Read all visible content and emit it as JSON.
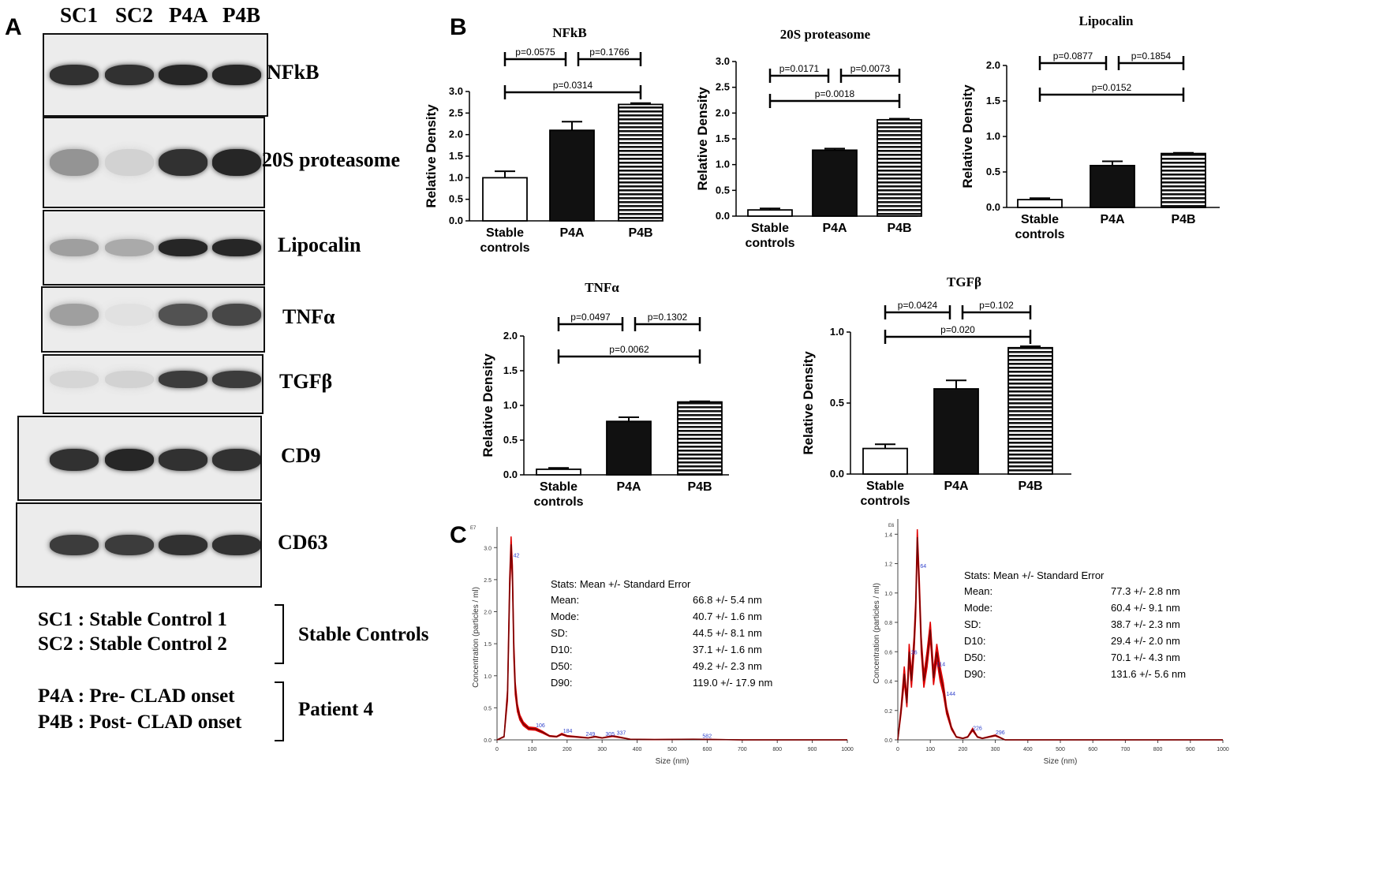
{
  "panels": {
    "a": "A",
    "b": "B",
    "c": "C"
  },
  "lanes": [
    "SC1",
    "SC2",
    "P4A",
    "P4B"
  ],
  "blots": [
    {
      "label": "NFkB",
      "intensity": [
        0.85,
        0.85,
        0.9,
        0.9
      ]
    },
    {
      "label": "20S proteasome",
      "intensity": [
        0.4,
        0.12,
        0.85,
        0.9
      ]
    },
    {
      "label": "Lipocalin",
      "intensity": [
        0.35,
        0.3,
        0.9,
        0.9
      ]
    },
    {
      "label": "TNFα",
      "intensity": [
        0.35,
        0.05,
        0.7,
        0.75
      ]
    },
    {
      "label": "TGFβ",
      "intensity": [
        0.1,
        0.12,
        0.8,
        0.8
      ]
    },
    {
      "label": "CD9",
      "intensity": [
        0.85,
        0.9,
        0.85,
        0.85
      ]
    },
    {
      "label": "CD63",
      "intensity": [
        0.8,
        0.8,
        0.85,
        0.85
      ]
    }
  ],
  "legend": {
    "sc1": "SC1 : Stable Control 1",
    "sc2": "SC2 : Stable Control 2",
    "group1": "Stable Controls",
    "p4a": "P4A : Pre- CLAD onset",
    "p4b": "P4B : Post- CLAD onset",
    "group2": "Patient 4"
  },
  "colors": {
    "bar_black": "#111111",
    "nta_red": "#e00000",
    "nta_dark": "#6b0000",
    "annot_blue": "#3344cc"
  },
  "chart_data": [
    {
      "type": "bar",
      "title": "NFkB",
      "ylabel": "Relative Density",
      "categories": [
        "Stable controls",
        "P4A",
        "P4B"
      ],
      "values": [
        1.0,
        2.1,
        2.7
      ],
      "errors": [
        0.15,
        0.2,
        0.03
      ],
      "ylim": [
        0,
        3.0
      ],
      "yticks": [
        "0.0",
        "0.5",
        "1.0",
        "1.5",
        "2.0",
        "2.5",
        "3.0"
      ],
      "comparisons": [
        {
          "from": 0,
          "to": 1,
          "label": "p=0.0575",
          "row": 2
        },
        {
          "from": 1,
          "to": 2,
          "label": "p=0.1766",
          "row": 2
        },
        {
          "from": 0,
          "to": 2,
          "label": "p=0.0314",
          "row": 1
        }
      ]
    },
    {
      "type": "bar",
      "title": "20S proteasome",
      "ylabel": "Relative Density",
      "categories": [
        "Stable controls",
        "P4A",
        "P4B"
      ],
      "values": [
        0.12,
        1.28,
        1.87
      ],
      "errors": [
        0.03,
        0.03,
        0.02
      ],
      "ylim": [
        0,
        3.0
      ],
      "yticks": [
        "0.0",
        "0.5",
        "1.0",
        "1.5",
        "2.0",
        "2.5",
        "3.0"
      ],
      "comparisons": [
        {
          "from": 0,
          "to": 1,
          "label": "p=0.0171",
          "row": 2
        },
        {
          "from": 1,
          "to": 2,
          "label": "p=0.0073",
          "row": 2
        },
        {
          "from": 0,
          "to": 2,
          "label": "p=0.0018",
          "row": 1
        }
      ]
    },
    {
      "type": "bar",
      "title": "Lipocalin",
      "ylabel": "Relative Density",
      "categories": [
        "Stable controls",
        "P4A",
        "P4B"
      ],
      "values": [
        0.11,
        0.59,
        0.76
      ],
      "errors": [
        0.02,
        0.06,
        0.01
      ],
      "ylim": [
        0,
        2.0
      ],
      "yticks": [
        "0.0",
        "0.5",
        "1.0",
        "1.5",
        "2.0"
      ],
      "comparisons": [
        {
          "from": 0,
          "to": 1,
          "label": "p=0.0877",
          "row": 2
        },
        {
          "from": 1,
          "to": 2,
          "label": "p=0.1854",
          "row": 2
        },
        {
          "from": 0,
          "to": 2,
          "label": "p=0.0152",
          "row": 1
        }
      ]
    },
    {
      "type": "bar",
      "title": "TNFα",
      "ylabel": "Relative Density",
      "categories": [
        "Stable controls",
        "P4A",
        "P4B"
      ],
      "values": [
        0.08,
        0.77,
        1.05
      ],
      "errors": [
        0.02,
        0.06,
        0.01
      ],
      "ylim": [
        0,
        2.0
      ],
      "yticks": [
        "0.0",
        "0.5",
        "1.0",
        "1.5",
        "2.0"
      ],
      "comparisons": [
        {
          "from": 0,
          "to": 1,
          "label": "p=0.0497",
          "row": 2
        },
        {
          "from": 1,
          "to": 2,
          "label": "p=0.1302",
          "row": 2
        },
        {
          "from": 0,
          "to": 2,
          "label": "p=0.0062",
          "row": 1
        }
      ]
    },
    {
      "type": "bar",
      "title": "TGFβ",
      "ylabel": "Relative Density",
      "categories": [
        "Stable controls",
        "P4A",
        "P4B"
      ],
      "values": [
        0.18,
        0.6,
        0.89
      ],
      "errors": [
        0.03,
        0.06,
        0.01
      ],
      "ylim": [
        0,
        1.0
      ],
      "yticks": [
        "0.0",
        "0.5",
        "1.0"
      ],
      "comparisons": [
        {
          "from": 0,
          "to": 1,
          "label": "p=0.0424",
          "row": 2
        },
        {
          "from": 1,
          "to": 2,
          "label": "p=0.102",
          "row": 2
        },
        {
          "from": 0,
          "to": 2,
          "label": "p=0.020",
          "row": 1
        }
      ]
    },
    {
      "type": "line",
      "title": "",
      "exponent": "E7",
      "xlabel": "Size (nm)",
      "ylabel": "Concentration (particles / ml)",
      "xlim": [
        0,
        1000
      ],
      "ylim": [
        0,
        3.2
      ],
      "xticks": [
        "0",
        "100",
        "200",
        "300",
        "400",
        "500",
        "600",
        "700",
        "800",
        "900",
        "1000"
      ],
      "yticks": [
        "0.0",
        "0.5",
        "1.0",
        "1.5",
        "2.0",
        "2.5",
        "3.0"
      ],
      "x": [
        0,
        20,
        30,
        36,
        40,
        44,
        48,
        52,
        58,
        65,
        75,
        90,
        110,
        130,
        150,
        170,
        185,
        200,
        220,
        240,
        260,
        280,
        300,
        330,
        350,
        380,
        450,
        560,
        700,
        1000
      ],
      "y": [
        0,
        0.05,
        0.7,
        2.4,
        3.05,
        2.6,
        1.4,
        0.8,
        0.5,
        0.35,
        0.25,
        0.18,
        0.17,
        0.12,
        0.06,
        0.05,
        0.09,
        0.06,
        0.05,
        0.04,
        0.03,
        0.05,
        0.03,
        0.06,
        0.04,
        0.01,
        0.005,
        0.01,
        0,
        0
      ],
      "peak_labels": [
        "42",
        "106",
        "184",
        "249",
        "305",
        "337",
        "582"
      ],
      "stats": {
        "header": "Stats: Mean +/- Standard Error",
        "rows": [
          {
            "name": "Mean:",
            "value": "66.8 +/- 5.4 nm"
          },
          {
            "name": "Mode:",
            "value": "40.7 +/- 1.6 nm"
          },
          {
            "name": "SD:",
            "value": "44.5 +/- 8.1 nm"
          },
          {
            "name": "D10:",
            "value": "37.1 +/- 1.6 nm"
          },
          {
            "name": "D50:",
            "value": "49.2 +/- 2.3 nm"
          },
          {
            "name": "D90:",
            "value": "119.0 +/- 17.9 nm"
          }
        ]
      }
    },
    {
      "type": "line",
      "title": "",
      "exponent": "E6",
      "xlabel": "Size (nm)",
      "ylabel": "Concentration (particles / ml)",
      "xlim": [
        0,
        1000
      ],
      "ylim": [
        0,
        1.45
      ],
      "xticks": [
        "0",
        "100",
        "200",
        "300",
        "400",
        "500",
        "600",
        "700",
        "800",
        "900",
        "1000"
      ],
      "yticks": [
        "0.0",
        "0.2",
        "0.4",
        "0.6",
        "0.8",
        "1.0",
        "1.2",
        "1.4"
      ],
      "x": [
        0,
        10,
        20,
        28,
        35,
        42,
        50,
        55,
        60,
        66,
        72,
        80,
        90,
        100,
        110,
        120,
        130,
        140,
        150,
        165,
        180,
        200,
        215,
        230,
        245,
        260,
        300,
        330,
        1000
      ],
      "y": [
        0,
        0.2,
        0.45,
        0.25,
        0.6,
        0.4,
        0.65,
        0.9,
        1.38,
        1.05,
        0.65,
        0.4,
        0.55,
        0.75,
        0.42,
        0.6,
        0.45,
        0.35,
        0.2,
        0.08,
        0.02,
        0.01,
        0.02,
        0.07,
        0.02,
        0.01,
        0.03,
        0,
        0
      ],
      "peak_labels": [
        "36",
        "64",
        "114",
        "144",
        "226",
        "296"
      ],
      "stats": {
        "header": "Stats: Mean +/- Standard Error",
        "rows": [
          {
            "name": "Mean:",
            "value": "77.3 +/- 2.8 nm"
          },
          {
            "name": "Mode:",
            "value": "60.4 +/- 9.1 nm"
          },
          {
            "name": "SD:",
            "value": "38.7 +/- 2.3 nm"
          },
          {
            "name": "D10:",
            "value": "29.4 +/- 2.0 nm"
          },
          {
            "name": "D50:",
            "value": "70.1 +/- 4.3 nm"
          },
          {
            "name": "D90:",
            "value": "131.6 +/- 5.6 nm"
          }
        ]
      }
    }
  ]
}
